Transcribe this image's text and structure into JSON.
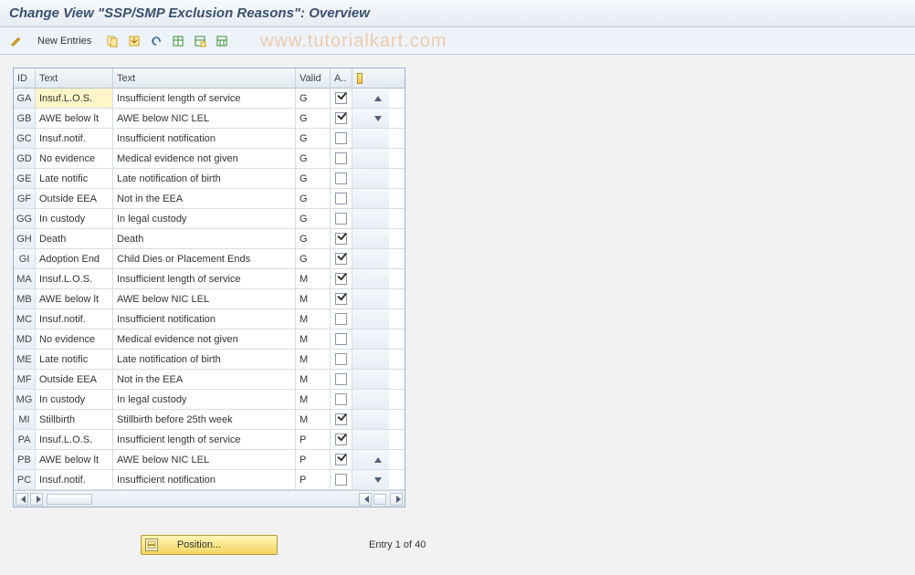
{
  "header": {
    "title": "Change View \"SSP/SMP Exclusion Reasons\": Overview"
  },
  "watermark": "www.tutorialkart.com",
  "toolbar": {
    "new_entries": "New Entries"
  },
  "grid": {
    "columns": {
      "id": "ID",
      "text1": "Text",
      "text2": "Text",
      "valid": "Valid",
      "a": "A.."
    },
    "rows": [
      {
        "id": "GA",
        "t1": "Insuf.L.O.S.",
        "t2": "Insufficient length of service",
        "v": "G",
        "a": true,
        "hl": true
      },
      {
        "id": "GB",
        "t1": "AWE below lt",
        "t2": "AWE below NIC LEL",
        "v": "G",
        "a": true
      },
      {
        "id": "GC",
        "t1": "Insuf.notif.",
        "t2": "Insufficient notification",
        "v": "G",
        "a": false
      },
      {
        "id": "GD",
        "t1": "No evidence",
        "t2": "Medical evidence not given",
        "v": "G",
        "a": false
      },
      {
        "id": "GE",
        "t1": "Late notific",
        "t2": "Late notification of birth",
        "v": "G",
        "a": false
      },
      {
        "id": "GF",
        "t1": "Outside EEA",
        "t2": "Not in the EEA",
        "v": "G",
        "a": false
      },
      {
        "id": "GG",
        "t1": "In custody",
        "t2": "In legal custody",
        "v": "G",
        "a": false
      },
      {
        "id": "GH",
        "t1": "Death",
        "t2": "Death",
        "v": "G",
        "a": true
      },
      {
        "id": "GI",
        "t1": "Adoption End",
        "t2": "Child Dies or Placement Ends",
        "v": "G",
        "a": true
      },
      {
        "id": "MA",
        "t1": "Insuf.L.O.S.",
        "t2": "Insufficient length of service",
        "v": "M",
        "a": true
      },
      {
        "id": "MB",
        "t1": "AWE below lt",
        "t2": "AWE below NIC LEL",
        "v": "M",
        "a": true
      },
      {
        "id": "MC",
        "t1": "Insuf.notif.",
        "t2": "Insufficient notification",
        "v": "M",
        "a": false
      },
      {
        "id": "MD",
        "t1": "No evidence",
        "t2": "Medical evidence not given",
        "v": "M",
        "a": false
      },
      {
        "id": "ME",
        "t1": "Late notific",
        "t2": "Late notification of birth",
        "v": "M",
        "a": false
      },
      {
        "id": "MF",
        "t1": "Outside EEA",
        "t2": "Not in the EEA",
        "v": "M",
        "a": false
      },
      {
        "id": "MG",
        "t1": "In custody",
        "t2": "In legal custody",
        "v": "M",
        "a": false
      },
      {
        "id": "MI",
        "t1": "Stillbirth",
        "t2": "Stillbirth before 25th week",
        "v": "M",
        "a": true
      },
      {
        "id": "PA",
        "t1": "Insuf.L.O.S.",
        "t2": "Insufficient length of service",
        "v": "P",
        "a": true
      },
      {
        "id": "PB",
        "t1": "AWE below lt",
        "t2": "AWE below NIC LEL",
        "v": "P",
        "a": true
      },
      {
        "id": "PC",
        "t1": "Insuf.notif.",
        "t2": "Insufficient notification",
        "v": "P",
        "a": false
      }
    ]
  },
  "footer": {
    "position_label": "Position...",
    "entry_text": "Entry 1 of 40"
  }
}
